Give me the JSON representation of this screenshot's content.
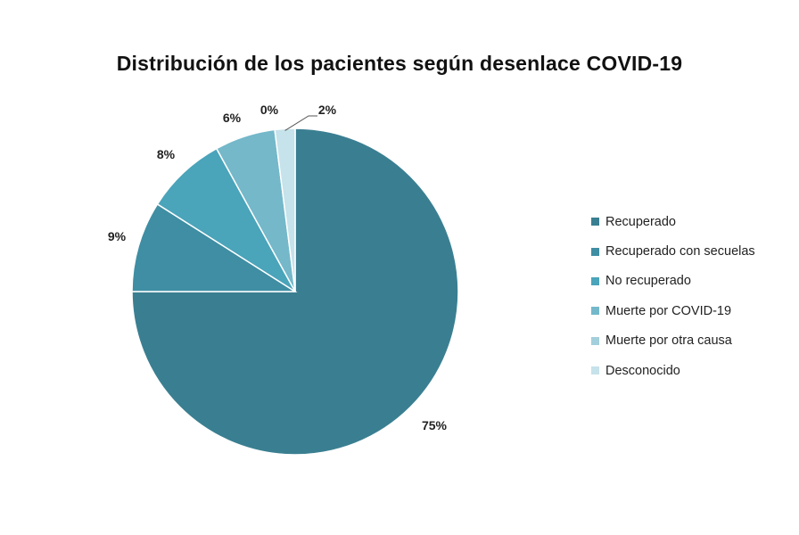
{
  "chart_data": {
    "type": "pie",
    "title": "Distribución  de los pacientes según desenlace COVID-19",
    "slices": [
      {
        "label": "Recuperado",
        "value": 75,
        "display": "75%",
        "color": "#3a7f91"
      },
      {
        "label": "Recuperado con secuelas",
        "value": 9,
        "display": "9%",
        "color": "#3f8ea3"
      },
      {
        "label": "No recuperado",
        "value": 8,
        "display": "8%",
        "color": "#4aa4ba"
      },
      {
        "label": "Muerte por COVID-19",
        "value": 6,
        "display": "6%",
        "color": "#74b8ca"
      },
      {
        "label": "Muerte por otra causa",
        "value": 0,
        "display": "0%",
        "color": "#a2cfdb"
      },
      {
        "label": "Desconocido",
        "value": 2,
        "display": "2%",
        "color": "#c6e2ea"
      }
    ],
    "legend_position": "right"
  }
}
